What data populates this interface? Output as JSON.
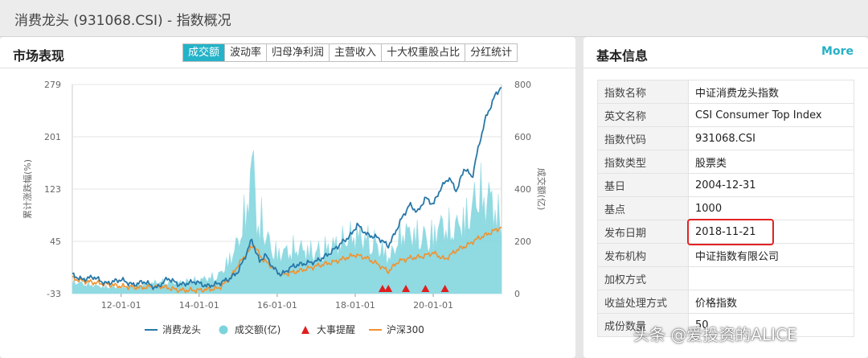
{
  "window": {
    "title": "消费龙头 (931068.CSI) - 指数概况"
  },
  "market": {
    "title": "市场表现",
    "tabs": [
      {
        "label": "成交额",
        "active": true
      },
      {
        "label": "波动率",
        "active": false
      },
      {
        "label": "归母净利润",
        "active": false
      },
      {
        "label": "主营收入",
        "active": false
      },
      {
        "label": "十大权重股占比",
        "active": false
      },
      {
        "label": "分红统计",
        "active": false
      }
    ]
  },
  "chart_data": {
    "type": "line",
    "title": "",
    "ylabel": "累计涨跌幅(%)",
    "y2label": "成交额(亿)",
    "yticks": [
      "279",
      "201",
      "123",
      "45",
      "-33"
    ],
    "ylim": [
      -33,
      279
    ],
    "y2ticks": [
      "800",
      "600",
      "400",
      "200",
      "0"
    ],
    "y2lim": [
      0,
      800
    ],
    "xticks": [
      "12-01-01",
      "14-01-01",
      "16-01-01",
      "18-01-01",
      "20-01-01"
    ],
    "xrange": [
      2010.75,
      2021.75
    ],
    "legend": [
      {
        "name": "消费龙头",
        "color": "#2878a8",
        "shape": "line"
      },
      {
        "name": "成交额(亿)",
        "color": "#7dd3dd",
        "shape": "circle"
      },
      {
        "name": "大事提醒",
        "color": "#e01e1e",
        "shape": "triangle"
      },
      {
        "name": "沪深300",
        "color": "#f0922e",
        "shape": "line"
      }
    ],
    "legend_position": "bottom",
    "series": [
      {
        "name": "消费龙头",
        "color": "#2878a8",
        "x": [
          2010.75,
          2011.0,
          2011.3,
          2011.6,
          2012.0,
          2012.3,
          2012.6,
          2012.9,
          2013.2,
          2013.5,
          2013.9,
          2014.2,
          2014.5,
          2014.8,
          2015.0,
          2015.2,
          2015.35,
          2015.45,
          2015.55,
          2015.7,
          2015.9,
          2016.1,
          2016.4,
          2016.7,
          2017.0,
          2017.3,
          2017.6,
          2017.9,
          2018.05,
          2018.3,
          2018.6,
          2018.85,
          2019.0,
          2019.2,
          2019.4,
          2019.6,
          2019.8,
          2020.0,
          2020.2,
          2020.4,
          2020.6,
          2020.8,
          2021.0,
          2021.1,
          2021.2,
          2021.35,
          2021.5,
          2021.6,
          2021.75
        ],
        "values": [
          -5,
          -12,
          -8,
          -18,
          -12,
          -20,
          -15,
          -25,
          -10,
          -20,
          -15,
          -22,
          -18,
          -10,
          0,
          25,
          48,
          30,
          15,
          25,
          5,
          -5,
          8,
          12,
          15,
          25,
          40,
          55,
          70,
          55,
          50,
          38,
          55,
          80,
          100,
          88,
          110,
          100,
          125,
          140,
          120,
          155,
          140,
          170,
          195,
          230,
          250,
          265,
          275
        ]
      },
      {
        "name": "沪深300",
        "color": "#f0922e",
        "x": [
          2010.75,
          2011.0,
          2011.5,
          2012.0,
          2012.5,
          2013.0,
          2013.5,
          2014.0,
          2014.5,
          2014.8,
          2015.0,
          2015.2,
          2015.4,
          2015.6,
          2015.8,
          2016.1,
          2016.5,
          2017.0,
          2017.5,
          2018.0,
          2018.3,
          2018.6,
          2018.85,
          2019.1,
          2019.4,
          2019.7,
          2020.0,
          2020.3,
          2020.6,
          2020.9,
          2021.1,
          2021.4,
          2021.6,
          2021.75
        ],
        "values": [
          -10,
          -14,
          -18,
          -22,
          -24,
          -22,
          -28,
          -28,
          -25,
          -10,
          10,
          25,
          40,
          20,
          10,
          -5,
          0,
          8,
          15,
          25,
          20,
          10,
          0,
          15,
          20,
          22,
          28,
          18,
          32,
          40,
          48,
          56,
          62,
          66
        ]
      },
      {
        "name": "成交额(亿)",
        "color": "#7dd3dd",
        "x": [
          2010.75,
          2011.5,
          2012.0,
          2012.5,
          2013.0,
          2013.5,
          2014.0,
          2014.5,
          2014.8,
          2015.0,
          2015.2,
          2015.3,
          2015.4,
          2015.5,
          2015.6,
          2015.8,
          2016.0,
          2016.5,
          2017.0,
          2017.5,
          2018.0,
          2018.5,
          2018.9,
          2019.2,
          2019.5,
          2019.9,
          2020.2,
          2020.5,
          2020.8,
          2021.0,
          2021.15,
          2021.3,
          2021.45,
          2021.6,
          2021.75
        ],
        "values": [
          60,
          35,
          30,
          45,
          60,
          55,
          70,
          90,
          180,
          260,
          420,
          560,
          680,
          300,
          380,
          250,
          200,
          230,
          210,
          250,
          300,
          260,
          180,
          320,
          300,
          280,
          350,
          320,
          380,
          420,
          560,
          460,
          500,
          420,
          350
        ]
      }
    ],
    "events_x": [
      2018.7,
      2018.85,
      2019.3,
      2019.8,
      2020.3
    ]
  },
  "info": {
    "title": "基本信息",
    "more": "More",
    "rows": [
      {
        "key": "指数名称",
        "value": "中证消费龙头指数"
      },
      {
        "key": "英文名称",
        "value": "CSI Consumer Top Index"
      },
      {
        "key": "指数代码",
        "value": "931068.CSI"
      },
      {
        "key": "指数类型",
        "value": "股票类"
      },
      {
        "key": "基日",
        "value": "2004-12-31"
      },
      {
        "key": "基点",
        "value": "1000"
      },
      {
        "key": "发布日期",
        "value": "2018-11-21"
      },
      {
        "key": "发布机构",
        "value": "中证指数有限公司"
      },
      {
        "key": "加权方式",
        "value": ""
      },
      {
        "key": "收益处理方式",
        "value": "价格指数"
      },
      {
        "key": "成份数量",
        "value": "50"
      }
    ]
  },
  "watermark": "头条 @爱投资的ALICE"
}
